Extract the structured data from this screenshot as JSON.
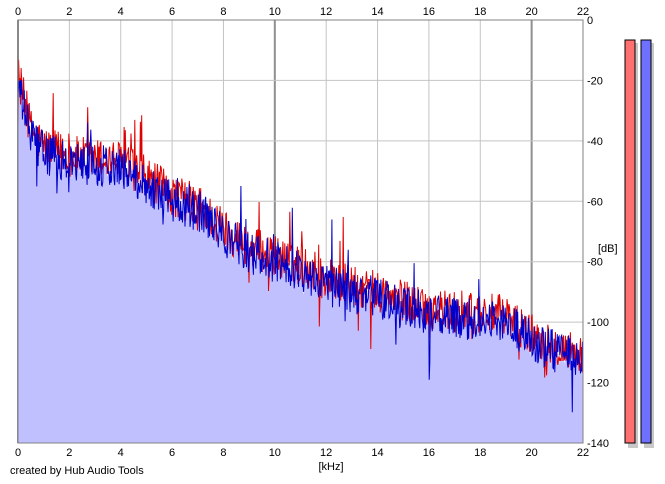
{
  "chart_data": {
    "type": "line",
    "xlabel": "[kHz]",
    "ylabel": "[dB]",
    "xlim": [
      0,
      22
    ],
    "ylim": [
      -140,
      0
    ],
    "x_ticks": [
      0,
      2,
      4,
      6,
      8,
      10,
      12,
      14,
      16,
      18,
      20,
      22
    ],
    "y_ticks": [
      0,
      -20,
      -40,
      -60,
      -80,
      -100,
      -120,
      -140
    ],
    "grid": true,
    "fill_color": "#c0c0ff",
    "series": [
      {
        "color": "#e00000",
        "x": [
          0,
          0.5,
          1,
          2,
          3,
          4,
          5,
          6,
          7,
          8,
          9,
          10,
          11,
          12,
          13,
          14,
          15,
          16,
          17,
          18,
          19,
          20,
          21,
          22
        ],
        "y": [
          -18,
          -36,
          -42,
          -45,
          -46,
          -47,
          -52,
          -58,
          -61,
          -69,
          -75,
          -78,
          -81,
          -85,
          -88,
          -90,
          -93,
          -95,
          -97,
          -97,
          -98,
          -104,
          -108,
          -111
        ]
      },
      {
        "color": "#0000cc",
        "x": [
          0,
          0.5,
          1,
          2,
          3,
          4,
          5,
          6,
          7,
          8,
          9,
          10,
          11,
          12,
          13,
          14,
          15,
          16,
          17,
          18,
          19,
          20,
          21,
          22
        ],
        "y": [
          -22,
          -38,
          -44,
          -47,
          -48,
          -49,
          -54,
          -60,
          -63,
          -71,
          -77,
          -80,
          -83,
          -87,
          -90,
          -92,
          -95,
          -97,
          -99,
          -99,
          -100,
          -106,
          -110,
          -113
        ]
      }
    ],
    "level_meters": [
      {
        "color": "#ff7070"
      },
      {
        "color": "#7070ff"
      }
    ]
  },
  "footer": {
    "credit": "created by Hub Audio Tools"
  }
}
